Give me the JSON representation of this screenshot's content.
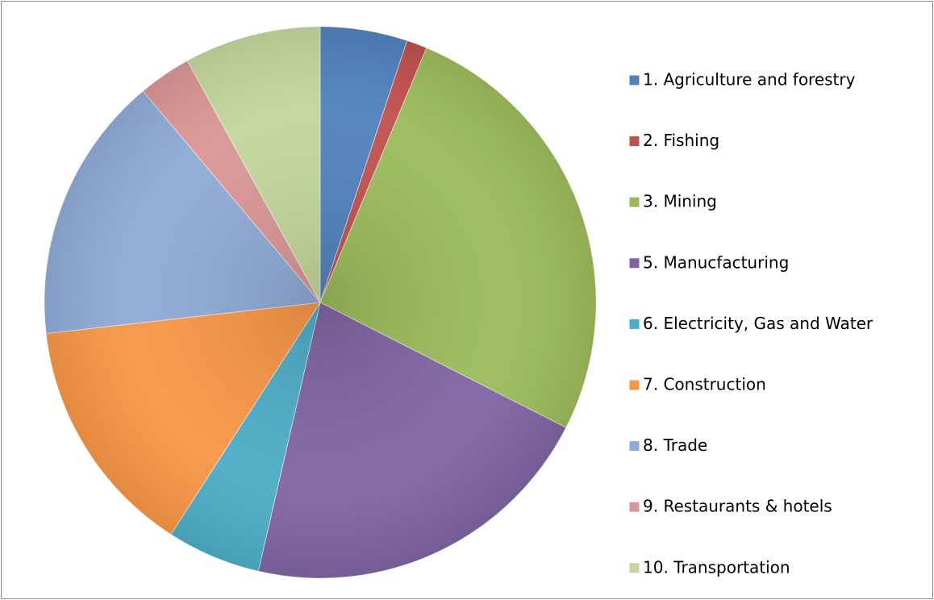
{
  "chart_data": {
    "type": "pie",
    "categories": [
      "1. Agriculture and forestry",
      "2. Fishing",
      "3. Mining",
      "5. Manucfacturing",
      "6. Electricity, Gas and Water",
      "7. Construction",
      "8. Trade",
      "9. Restaurants & hotels",
      "10. Transportation"
    ],
    "values": [
      5.1,
      1.2,
      26.2,
      21.1,
      5.5,
      14.1,
      15.7,
      3.1,
      8.0
    ],
    "colors": [
      "#4f81bd",
      "#c0504d",
      "#9bbb59",
      "#8064a2",
      "#4bacc6",
      "#f79646",
      "#8eaad6",
      "#d99694",
      "#c3d69b"
    ]
  }
}
